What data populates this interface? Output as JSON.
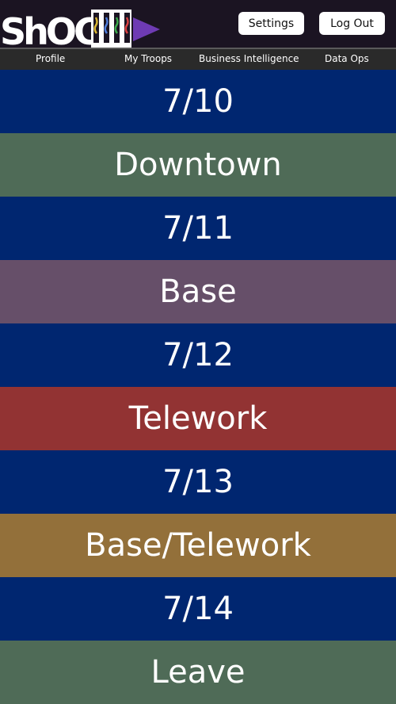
{
  "header": {
    "logo_text": "ShOC",
    "settings_label": "Settings",
    "logout_label": "Log Out"
  },
  "nav": {
    "items": [
      "Profile",
      "My Troops",
      "Business Intelligence",
      "Data Ops"
    ]
  },
  "schedule": [
    {
      "date": "7/10",
      "location": "Downtown",
      "location_color": "#4f6b57"
    },
    {
      "date": "7/11",
      "location": "Base",
      "location_color": "#664f69"
    },
    {
      "date": "7/12",
      "location": "Telework",
      "location_color": "#923333"
    },
    {
      "date": "7/13",
      "location": "Base/Telework",
      "location_color": "#93703a"
    },
    {
      "date": "7/14",
      "location": "Leave",
      "location_color": "#4f6b57"
    }
  ],
  "colors": {
    "date_row": "#002670",
    "topbar": "#1b1422",
    "navbar": "#2a2a2a"
  }
}
